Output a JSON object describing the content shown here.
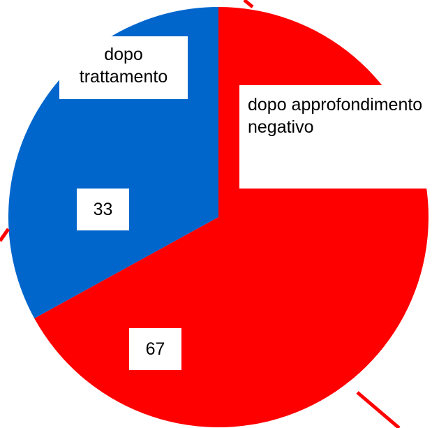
{
  "chart_data": {
    "type": "pie",
    "categories": [
      "dopo approfondimento negativo",
      "dopo trattamento"
    ],
    "values": [
      67,
      33
    ],
    "colors": [
      "#ff0000",
      "#0066cc"
    ]
  }
}
